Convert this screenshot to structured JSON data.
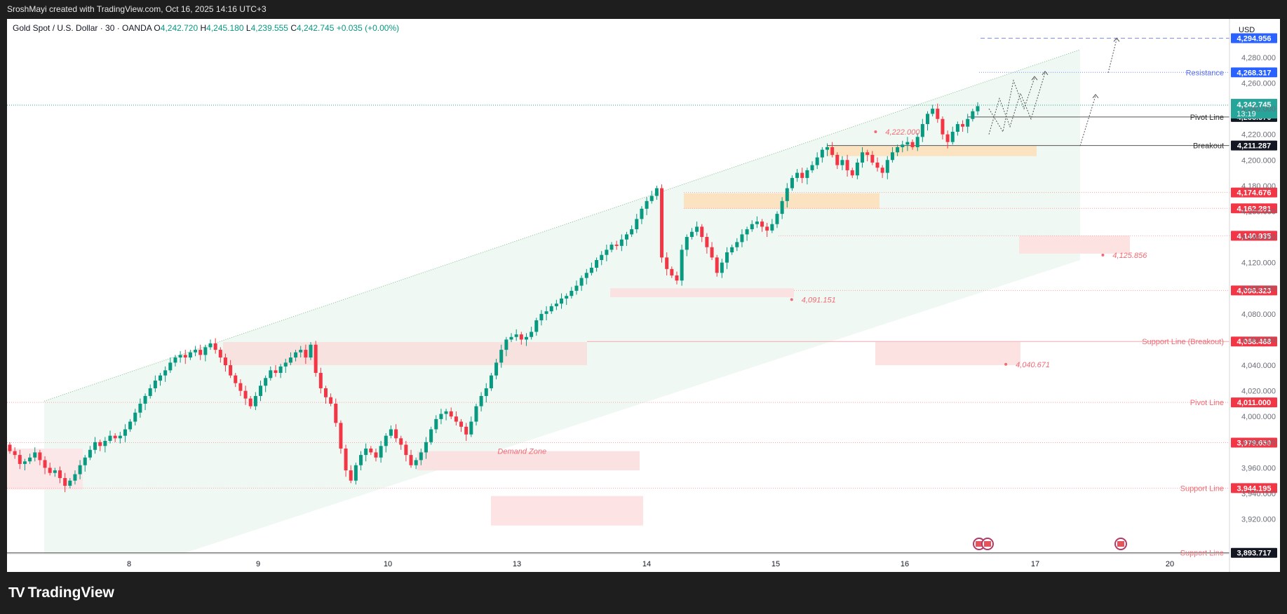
{
  "header": {
    "attribution": "SroshMayi created with TradingView.com, Oct 16, 2025 14:16 UTC+3"
  },
  "symbol": {
    "name": "Gold Spot / U.S. Dollar · 30 · OANDA",
    "o_label": "O",
    "o": "4,242.720",
    "h_label": "H",
    "h": "4,245.180",
    "l_label": "L",
    "l": "4,239.555",
    "c_label": "C",
    "c": "4,242.745",
    "change": "+0.035 (+0.00%)"
  },
  "currency": "USD",
  "brand": {
    "name": "TradingView",
    "logo_text": "TV"
  },
  "colors": {
    "up": "#089981",
    "down": "#f23645",
    "price_tag": "#26a69a",
    "level_red": "#f23645",
    "level_blue": "#2962ff",
    "level_black": "#131722"
  },
  "chart_data": {
    "type": "candlestick",
    "symbol": "XAUUSD",
    "timeframe": "30",
    "y_ticks": [
      "3,920.000",
      "3,940.000",
      "3,960.000",
      "3,980.000",
      "4,000.000",
      "4,020.000",
      "4,040.000",
      "4,060.000",
      "4,080.000",
      "4,100.000",
      "4,120.000",
      "4,140.000",
      "4,160.000",
      "4,180.000",
      "4,200.000",
      "4,220.000",
      "4,240.000",
      "4,260.000",
      "4,280.000",
      "4,300.000"
    ],
    "x_ticks": [
      "8",
      "9",
      "10",
      "13",
      "14",
      "15",
      "16",
      "17",
      "20"
    ],
    "ylim": [
      3893,
      4310
    ],
    "current_price": {
      "value": "4,242.745",
      "countdown": "13:19"
    },
    "price_levels": [
      {
        "label": "",
        "price": 4294.956,
        "price_text": "4,294.956",
        "style": "blue-dashed"
      },
      {
        "label": "Resistance",
        "price": 4268.317,
        "price_text": "4,268.317",
        "style": "blue-dotted"
      },
      {
        "label": "Pivot Line",
        "price": 4233.57,
        "price_text": "4,233.570",
        "style": "black"
      },
      {
        "label": "Breakout",
        "price": 4211.287,
        "price_text": "4,211.287",
        "style": "black"
      },
      {
        "label": "",
        "price": 4174.676,
        "price_text": "4,174.676",
        "style": "red-dotted"
      },
      {
        "label": "",
        "price": 4162.281,
        "price_text": "4,162.281",
        "style": "red-dotted"
      },
      {
        "label": "",
        "price": 4140.935,
        "price_text": "4,140.935",
        "style": "red-dotted"
      },
      {
        "label": "",
        "price": 4098.323,
        "price_text": "4,098.323",
        "style": "red-dotted"
      },
      {
        "label": "Support Line (Breakout)",
        "price": 4058.468,
        "price_text": "4,058.468",
        "style": "red"
      },
      {
        "label": "Pivot Line",
        "price": 4011.0,
        "price_text": "4,011.000",
        "style": "red-dotted"
      },
      {
        "label": "",
        "price": 3979.65,
        "price_text": "3,979.650",
        "style": "red-dotted"
      },
      {
        "label": "Support Line",
        "price": 3944.195,
        "price_text": "3,944.195",
        "style": "red-dotted"
      },
      {
        "label": "Support Line",
        "price": 3893.717,
        "price_text": "3,893.717",
        "style": "black"
      }
    ],
    "annotations": [
      {
        "text": "4,222.000",
        "price": 4222.0,
        "x": 15.85
      },
      {
        "text": "4,125.856",
        "price": 4125.856,
        "x": 17.6
      },
      {
        "text": "4,091.151",
        "price": 4091.151,
        "x": 15.2
      },
      {
        "text": "4,040.671",
        "price": 4040.671,
        "x": 16.85
      },
      {
        "text": "Demand Zone",
        "price": 3973,
        "x": 12.55
      }
    ],
    "series": [
      {
        "name": "XAUUSD",
        "closes": [
          3973,
          3970,
          3963,
          3965,
          3968,
          3972,
          3966,
          3960,
          3956,
          3958,
          3952,
          3946,
          3950,
          3955,
          3962,
          3968,
          3974,
          3980,
          3977,
          3981,
          3985,
          3983,
          3985,
          3990,
          3996,
          4003,
          4010,
          4016,
          4022,
          4028,
          4032,
          4036,
          4042,
          4046,
          4048,
          4046,
          4050,
          4052,
          4048,
          4054,
          4057,
          4052,
          4046,
          4040,
          4032,
          4026,
          4020,
          4014,
          4008,
          4016,
          4024,
          4030,
          4036,
          4034,
          4039,
          4042,
          4046,
          4050,
          4052,
          4046,
          4056,
          4034,
          4022,
          4015,
          4010,
          3995,
          3975,
          3958,
          3950,
          3962,
          3970,
          3975,
          3972,
          3968,
          3977,
          3985,
          3990,
          3983,
          3978,
          3970,
          3962,
          3966,
          3972,
          3980,
          3990,
          3998,
          4002,
          4004,
          4000,
          3996,
          3992,
          3986,
          3996,
          4008,
          4016,
          4022,
          4032,
          4042,
          4052,
          4060,
          4062,
          4064,
          4060,
          4062,
          4066,
          4075,
          4080,
          4082,
          4086,
          4088,
          4092,
          4094,
          4098,
          4102,
          4108,
          4112,
          4116,
          4122,
          4126,
          4130,
          4134,
          4133,
          4138,
          4142,
          4146,
          4154,
          4162,
          4168,
          4172,
          4178,
          4124,
          4115,
          4110,
          4106,
          4130,
          4140,
          4144,
          4148,
          4140,
          4132,
          4124,
          4112,
          4120,
          4128,
          4132,
          4136,
          4142,
          4146,
          4150,
          4152,
          4148,
          4145,
          4150,
          4158,
          4168,
          4178,
          4186,
          4190,
          4186,
          4192,
          4196,
          4202,
          4208,
          4210,
          4204,
          4196,
          4200,
          4192,
          4188,
          4198,
          4206,
          4204,
          4198,
          4194,
          4190,
          4200,
          4206,
          4210,
          4212,
          4214,
          4210,
          4218,
          4228,
          4236,
          4240,
          4232,
          4220,
          4214,
          4222,
          4228,
          4226,
          4232,
          4238,
          4242
        ]
      }
    ]
  }
}
